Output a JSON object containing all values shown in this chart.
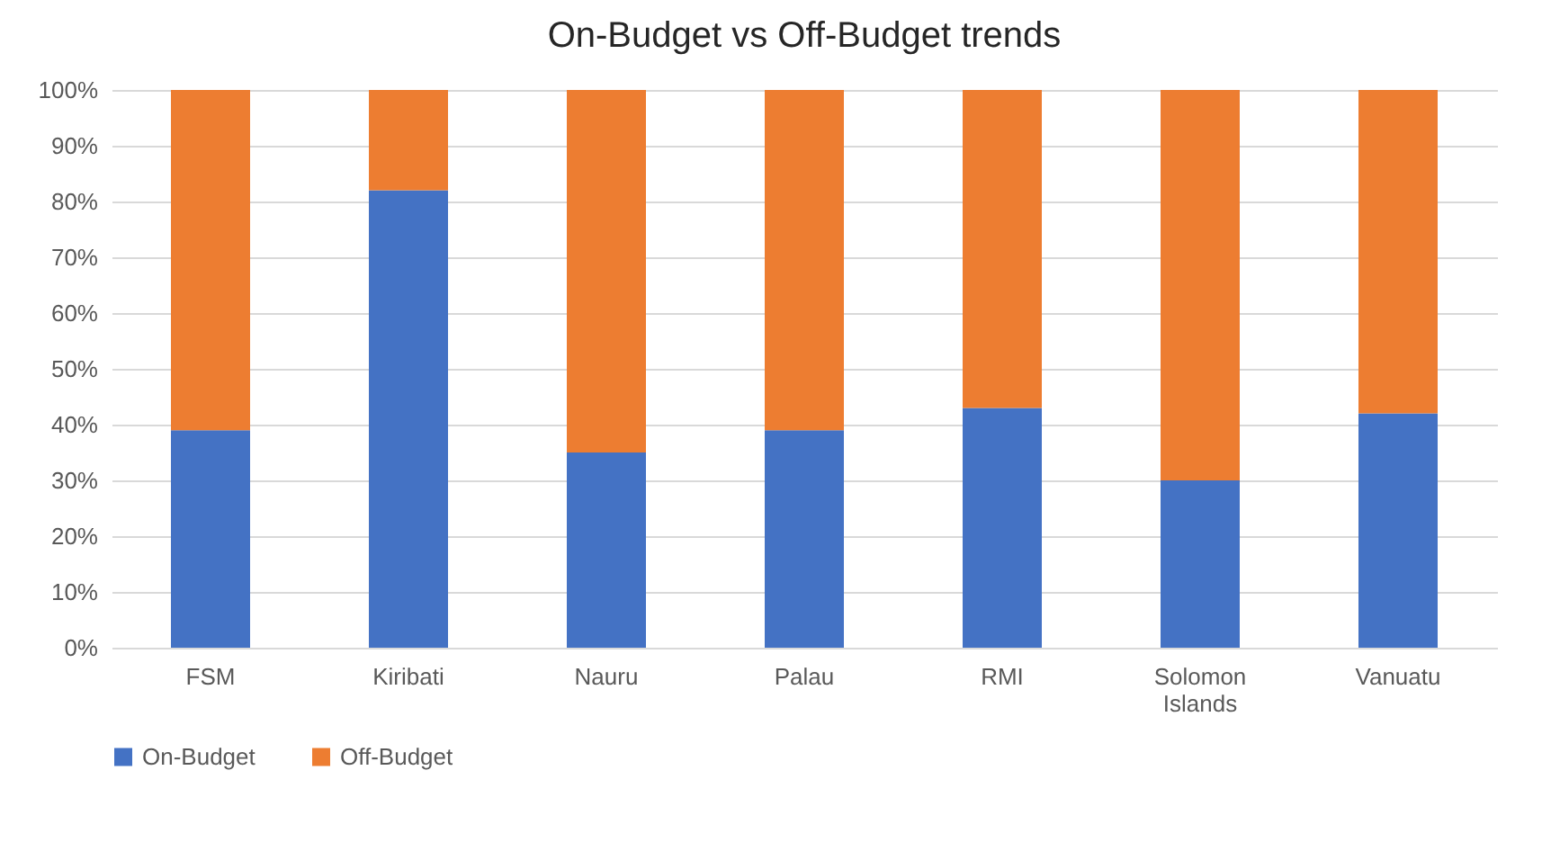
{
  "chart_data": {
    "type": "bar",
    "title": "On-Budget vs Off-Budget trends",
    "stacked": true,
    "categories": [
      "FSM",
      "Kiribati",
      "Nauru",
      "Palau",
      "RMI",
      "Solomon Islands",
      "Vanuatu"
    ],
    "series": [
      {
        "name": "On-Budget",
        "color": "#4472c4",
        "values": [
          39,
          82,
          35,
          39,
          43,
          30,
          42
        ]
      },
      {
        "name": "Off-Budget",
        "color": "#ed7d31",
        "values": [
          61,
          18,
          65,
          61,
          57,
          70,
          58
        ]
      }
    ],
    "ylim": [
      0,
      100
    ],
    "yticks": [
      {
        "value": 0,
        "label": "0%"
      },
      {
        "value": 10,
        "label": "10%"
      },
      {
        "value": 20,
        "label": "20%"
      },
      {
        "value": 30,
        "label": "30%"
      },
      {
        "value": 40,
        "label": "40%"
      },
      {
        "value": 50,
        "label": "50%"
      },
      {
        "value": 60,
        "label": "60%"
      },
      {
        "value": 70,
        "label": "70%"
      },
      {
        "value": 80,
        "label": "80%"
      },
      {
        "value": 90,
        "label": "90%"
      },
      {
        "value": 100,
        "label": "100%"
      }
    ],
    "grid": "y",
    "legend": "bottom"
  }
}
